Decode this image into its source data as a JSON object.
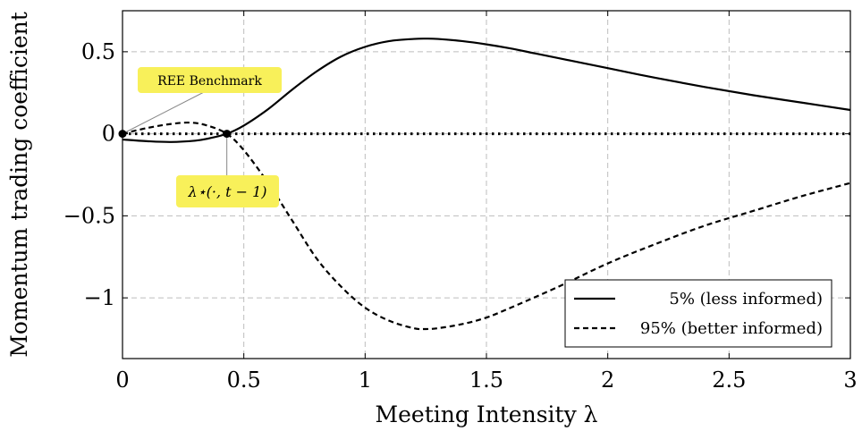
{
  "chart_data": {
    "type": "line",
    "title": "",
    "xlabel": "Meeting Intensity λ",
    "ylabel": "Momentum trading coefficient",
    "xlim": [
      0,
      3
    ],
    "ylim": [
      -1.37,
      0.75
    ],
    "grid": true,
    "legend_position": "bottom-right",
    "xticks": [
      0,
      0.5,
      1,
      1.5,
      2,
      2.5,
      3
    ],
    "xtick_labels": [
      "0",
      "0.5",
      "1",
      "1.5",
      "2",
      "2.5",
      "3"
    ],
    "yticks": [
      0.5,
      0,
      -0.5,
      -1
    ],
    "ytick_labels": [
      "0.5",
      "0",
      "−0.5",
      "−1"
    ],
    "series": [
      {
        "name": "5% (less informed)",
        "style": "solid",
        "x": [
          0,
          0.1,
          0.2,
          0.3,
          0.35,
          0.43,
          0.5,
          0.6,
          0.7,
          0.8,
          0.9,
          1.0,
          1.1,
          1.2,
          1.25,
          1.3,
          1.4,
          1.5,
          1.6,
          1.7,
          1.8,
          1.9,
          2.0,
          2.2,
          2.4,
          2.6,
          2.8,
          3.0
        ],
        "y": [
          -0.035,
          -0.045,
          -0.05,
          -0.042,
          -0.03,
          0.0,
          0.05,
          0.15,
          0.27,
          0.38,
          0.47,
          0.53,
          0.565,
          0.578,
          0.58,
          0.578,
          0.565,
          0.545,
          0.52,
          0.49,
          0.46,
          0.43,
          0.4,
          0.34,
          0.285,
          0.235,
          0.19,
          0.145
        ]
      },
      {
        "name": "95% (better informed)",
        "style": "dashed",
        "x": [
          0,
          0.1,
          0.2,
          0.28,
          0.35,
          0.43,
          0.5,
          0.6,
          0.7,
          0.8,
          0.9,
          1.0,
          1.1,
          1.2,
          1.25,
          1.3,
          1.4,
          1.5,
          1.6,
          1.8,
          2.0,
          2.2,
          2.4,
          2.6,
          2.8,
          3.0
        ],
        "y": [
          0.0,
          0.035,
          0.06,
          0.068,
          0.05,
          0.0,
          -0.1,
          -0.3,
          -0.53,
          -0.76,
          -0.93,
          -1.06,
          -1.14,
          -1.185,
          -1.19,
          -1.185,
          -1.16,
          -1.12,
          -1.06,
          -0.93,
          -0.79,
          -0.67,
          -0.56,
          -0.47,
          -0.38,
          -0.3
        ]
      }
    ],
    "reference_line": {
      "y": 0,
      "style": "dotted"
    },
    "annotations": [
      {
        "label": "REE Benchmark",
        "x": 0,
        "y": 0
      },
      {
        "label": "λ⋆(·, t − 1)",
        "x": 0.43,
        "y": 0
      }
    ]
  },
  "colors": {
    "line": "#000000",
    "grid": "#bdbdbd",
    "annotation_fill": "#f8f05a"
  }
}
